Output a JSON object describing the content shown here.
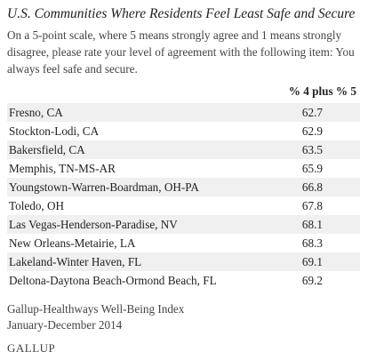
{
  "title": "U.S. Communities Where Residents Feel Least Safe and Secure",
  "description": "On a 5-point scale, where 5 means strongly agree and 1 means strongly disagree, please rate your level of agreement with the following item: You always feel safe and secure.",
  "table": {
    "column_header": "% 4 plus % 5",
    "rows": [
      {
        "name": "Fresno, CA",
        "value": "62.7"
      },
      {
        "name": "Stockton-Lodi, CA",
        "value": "62.9"
      },
      {
        "name": "Bakersfield, CA",
        "value": "63.5"
      },
      {
        "name": "Memphis, TN-MS-AR",
        "value": "65.9"
      },
      {
        "name": "Youngstown-Warren-Boardman, OH-PA",
        "value": "66.8"
      },
      {
        "name": "Toledo, OH",
        "value": "67.8"
      },
      {
        "name": "Las Vegas-Henderson-Paradise, NV",
        "value": "68.1"
      },
      {
        "name": "New Orleans-Metairie, LA",
        "value": "68.3"
      },
      {
        "name": "Lakeland-Winter Haven, FL",
        "value": "69.1"
      },
      {
        "name": "Deltona-Daytona Beach-Ormond Beach, FL",
        "value": "69.2"
      }
    ]
  },
  "source": {
    "line1": "Gallup-Healthways Well-Being Index",
    "line2": "January-December 2014"
  },
  "logo": "GALLUP",
  "colors": {
    "row_shade": "#f0f0f0",
    "text": "#222222"
  }
}
